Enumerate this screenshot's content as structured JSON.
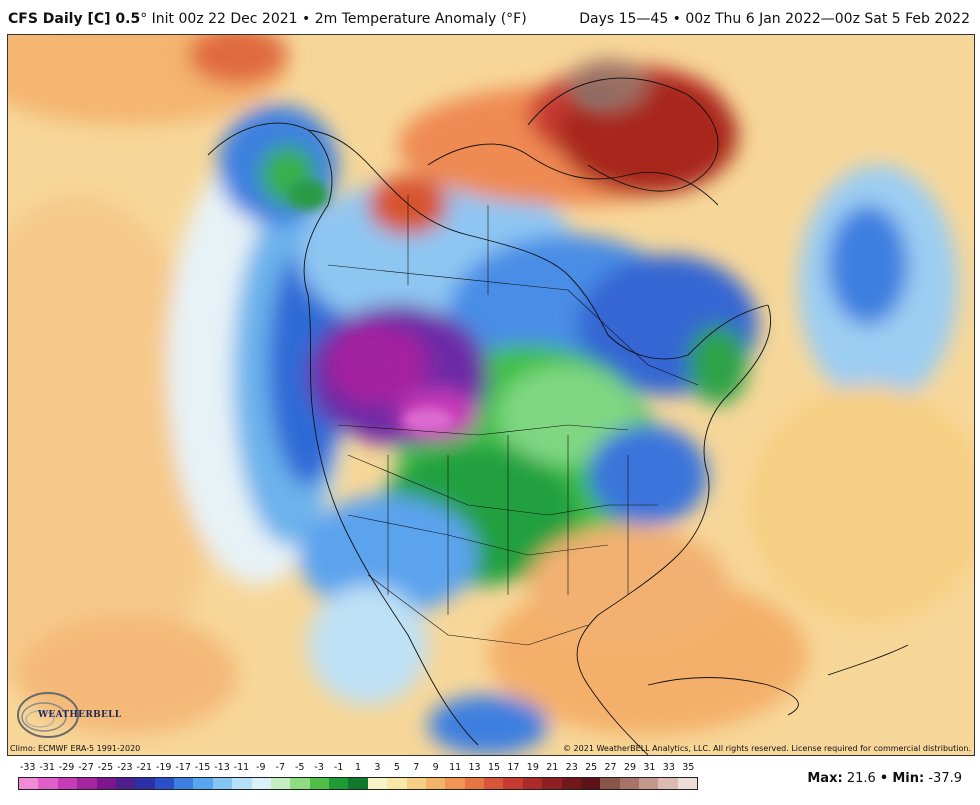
{
  "header": {
    "title_bold": "CFS Daily [C] 0.5",
    "title_rest": "° Init 00z 22 Dec 2021 • 2m Temperature Anomaly (°F)",
    "right_text": "Days 15—45 • 00z Thu 6 Jan 2022—00z Sat 5 Feb 2022"
  },
  "map": {
    "climo_note": "Climo: ECMWF ERA-5 1991-2020",
    "copyright": "© 2021 WeatherBELL Analytics, LLC. All rights reserved. License required for commercial distribution.",
    "logo_text": "WEATHERBELL"
  },
  "legend": {
    "ticks": [
      "-33",
      "-31",
      "-29",
      "-27",
      "-25",
      "-23",
      "-21",
      "-19",
      "-17",
      "-15",
      "-13",
      "-11",
      "-9",
      "-7",
      "-5",
      "-3",
      "-1",
      "1",
      "3",
      "5",
      "7",
      "9",
      "11",
      "13",
      "15",
      "17",
      "19",
      "21",
      "23",
      "25",
      "27",
      "29",
      "31",
      "33",
      "35"
    ],
    "colors": [
      "#f28ad8",
      "#e25fcb",
      "#c83bb8",
      "#a524a0",
      "#7d1490",
      "#4d1f8c",
      "#2d2fa4",
      "#2a50c8",
      "#3c7fe0",
      "#5aa6ee",
      "#86c6f4",
      "#b6e0f7",
      "#dcf0fb",
      "#c6eec3",
      "#8fdc83",
      "#4fbf4a",
      "#1f9a34",
      "#0f7a2e",
      "#f7f5c8",
      "#f9e7a6",
      "#f7cf84",
      "#f4b36a",
      "#ef9455",
      "#e67444",
      "#d8553a",
      "#c63a31",
      "#ad2a2a",
      "#8e1f22",
      "#72181d",
      "#5e1218",
      "#8a5448",
      "#a67468",
      "#c4978b",
      "#dcbbb2",
      "#eeddd8"
    ]
  },
  "stats": {
    "max_label": "Max:",
    "max_value": "21.6",
    "sep": "•",
    "min_label": "Min:",
    "min_value": "-37.9"
  }
}
